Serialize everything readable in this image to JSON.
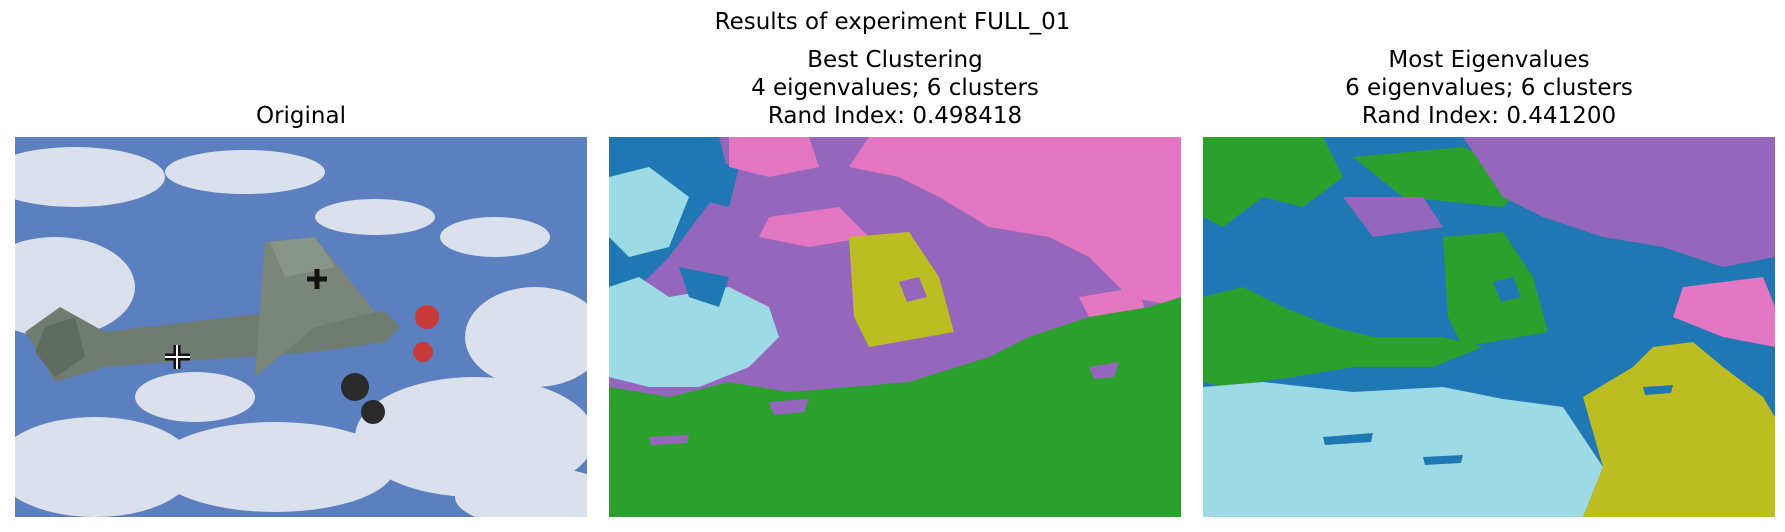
{
  "figure": {
    "suptitle": "Results of experiment FULL_01"
  },
  "panels": [
    {
      "title_lines": [
        "Original"
      ],
      "content": "photograph of propeller airplane against cloudy sky"
    },
    {
      "title_lines": [
        "Best Clustering",
        "4 eigenvalues; 6 clusters",
        "Rand Index: 0.498418"
      ],
      "eigenvalues": 4,
      "clusters": 6,
      "rand_index": 0.498418
    },
    {
      "title_lines": [
        "Most Eigenvalues",
        "6 eigenvalues; 6 clusters",
        "Rand Index: 0.441200"
      ],
      "eigenvalues": 6,
      "clusters": 6,
      "rand_index": 0.4412
    }
  ],
  "cluster_colors": {
    "blue": "#1f77b4",
    "purple": "#9467bd",
    "pink": "#e377c2",
    "cyan": "#9edae5",
    "olive": "#bcbd22",
    "green": "#2ca02c"
  },
  "colors": {
    "sky": "#5b7fbf",
    "cloud": "#e8ecf2",
    "plane": "#6f7c6f"
  }
}
